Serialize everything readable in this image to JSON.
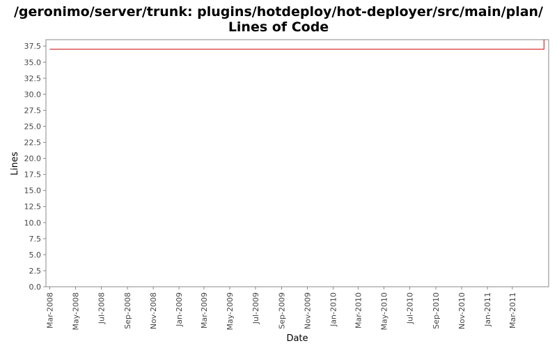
{
  "chart_data": {
    "type": "line",
    "title": "/geronimo/server/trunk: plugins/hotdeploy/hot-deployer/src/main/plan/",
    "subtitle": "Lines of Code",
    "xlabel": "Date",
    "ylabel": "Lines",
    "ylim": [
      0,
      38.5
    ],
    "xlim": [
      "2008-02-21",
      "2011-05-26"
    ],
    "y_ticks": [
      "0.0",
      "2.5",
      "5.0",
      "7.5",
      "10.0",
      "12.5",
      "15.0",
      "17.5",
      "20.0",
      "22.5",
      "25.0",
      "27.5",
      "30.0",
      "32.5",
      "35.0",
      "37.5"
    ],
    "x_ticks": [
      "Mar-2008",
      "May-2008",
      "Jul-2008",
      "Sep-2008",
      "Nov-2008",
      "Jan-2009",
      "Mar-2009",
      "May-2009",
      "Jul-2009",
      "Sep-2009",
      "Nov-2009",
      "Jan-2010",
      "Mar-2010",
      "May-2010",
      "Jul-2010",
      "Sep-2010",
      "Nov-2010",
      "Jan-2011",
      "Mar-2011"
    ],
    "series": [
      {
        "color": "#cc0000",
        "points": [
          {
            "x": "2008-03-01",
            "y": 37
          },
          {
            "x": "2011-05-15",
            "y": 37
          },
          {
            "x": "2011-05-15",
            "y": 38.5
          }
        ]
      }
    ],
    "grid": false,
    "legend": "none"
  }
}
